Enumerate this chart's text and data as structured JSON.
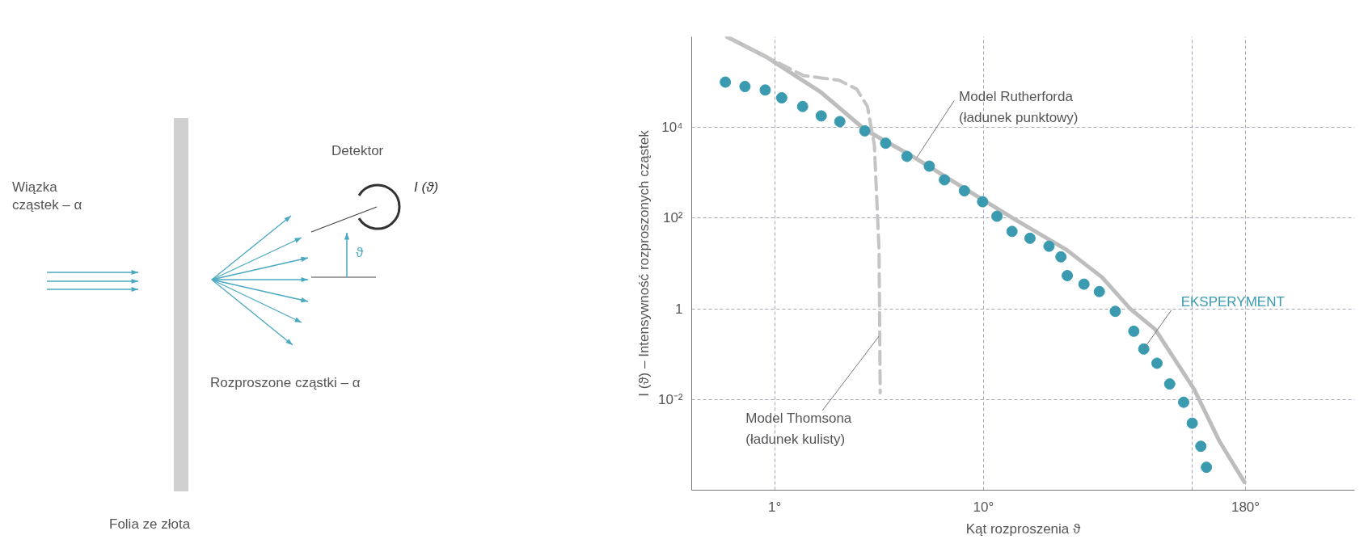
{
  "chart_data": [
    {
      "type": "other",
      "annotations": [
        "Wiązka\ncząstek – α",
        "Detektor",
        "I (ϑ)",
        "ϑ",
        "Rozproszone cząstki – α",
        "Folia ze złota"
      ]
    },
    {
      "type": "scatter",
      "xlabel": "Kąt rozproszenia ϑ",
      "ylabel": "I (ϑ) – Intensywność rozproszonych cząstek",
      "log": "xy",
      "xlim": [
        0.4,
        600
      ],
      "ylim": [
        0.0001,
        1000000
      ],
      "xticks": [
        {
          "value": 1,
          "label": "1°"
        },
        {
          "value": 10,
          "label": "10°"
        },
        {
          "value": 100,
          "label": null
        },
        {
          "value": 180,
          "label": "180°"
        }
      ],
      "yticks": [
        {
          "value": 0.01,
          "label": "10⁻²"
        },
        1,
        {
          "value": 100,
          "label": "10²"
        },
        {
          "value": 10000,
          "label": "10⁴"
        }
      ],
      "grid": true,
      "marker": "circle",
      "series": [
        {
          "type": "line",
          "color": "#bdbdbd",
          "line_style": "solid",
          "marker": "none",
          "x": [
            0.59,
            0.92,
            1.67,
            2.7,
            4.5,
            10,
            13.8,
            25,
            36.9,
            50.5,
            66.5,
            102,
            135,
            178
          ],
          "values": [
            1000000,
            350000,
            59000,
            9000,
            2400,
            250,
            100,
            20,
            5,
            1,
            0.35,
            0.017,
            0.0012,
            0.00015
          ]
        },
        {
          "type": "line",
          "color": "#c4c4c4",
          "line_style": "dashed",
          "marker": "none",
          "x": [
            0.59,
            1.37,
            2.03,
            2.47,
            2.78,
            3.0,
            3.16,
            3.2
          ],
          "values": [
            1000000,
            140000,
            110000,
            70000,
            29000,
            4100,
            20,
            0.014
          ]
        },
        {
          "type": "scatter",
          "name": "EKSPERYMENT",
          "color": "#3a9bb0",
          "x": [
            0.58,
            0.72,
            0.9,
            1.08,
            1.36,
            1.67,
            2.05,
            2.7,
            3.4,
            4.3,
            5.5,
            6.5,
            8.1,
            9.9,
            11.6,
            13.7,
            16.7,
            20.6,
            23.5,
            25.2,
            30.3,
            35.9,
            42.8,
            52.5,
            58.6,
            67.8,
            78,
            91,
            100,
            110,
            117
          ],
          "values": [
            100000,
            80000,
            67000,
            45000,
            29000,
            18000,
            13500,
            8400,
            4500,
            2300,
            1400,
            700,
            400,
            230,
            110,
            51,
            36,
            24,
            14,
            5.4,
            3.5,
            2.4,
            0.88,
            0.32,
            0.13,
            0.063,
            0.022,
            0.0087,
            0.003,
            0.00093,
            0.00032
          ]
        }
      ],
      "annotations": [
        {
          "text": "Model Rutherforda\n(ładunek punktowy)",
          "x": 4.8,
          "y": 2200
        },
        {
          "text": "Model Thomsona\n(ładunek kulisty)",
          "x": 3.16,
          "y": 0.25
        }
      ]
    }
  ]
}
